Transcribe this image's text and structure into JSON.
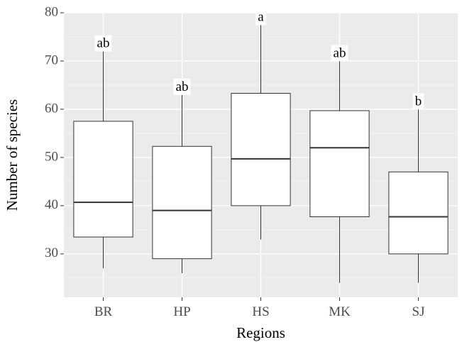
{
  "chart_data": {
    "type": "box",
    "xlabel": "Regions",
    "ylabel": "Number of species",
    "ylim": [
      21,
      80
    ],
    "yticks": [
      30,
      40,
      50,
      60,
      70,
      80
    ],
    "grid": true,
    "legend": "none",
    "categories": [
      "BR",
      "HP",
      "HS",
      "MK",
      "SJ"
    ],
    "boxes": [
      {
        "category": "BR",
        "min": 27,
        "q1": 33.5,
        "median": 40.7,
        "q3": 57.5,
        "max": 72,
        "group": "ab"
      },
      {
        "category": "HP",
        "min": 26,
        "q1": 29,
        "median": 39,
        "q3": 52.3,
        "max": 63,
        "group": "ab"
      },
      {
        "category": "HS",
        "min": 33,
        "q1": 40,
        "median": 49.7,
        "q3": 63.3,
        "max": 77.5,
        "group": "a"
      },
      {
        "category": "MK",
        "min": 24,
        "q1": 37.7,
        "median": 52,
        "q3": 59.7,
        "max": 70,
        "group": "ab"
      },
      {
        "category": "SJ",
        "min": 24,
        "q1": 30,
        "median": 37.7,
        "q3": 47,
        "max": 60,
        "group": "b"
      }
    ]
  },
  "colors": {
    "panel_background": "#ebebeb",
    "grid_major": "#ffffff",
    "grid_minor": "#f4f4f4",
    "box_fill": "#ffffff",
    "box_stroke": "#333333",
    "whisker": "#333333",
    "median": "#333333"
  }
}
